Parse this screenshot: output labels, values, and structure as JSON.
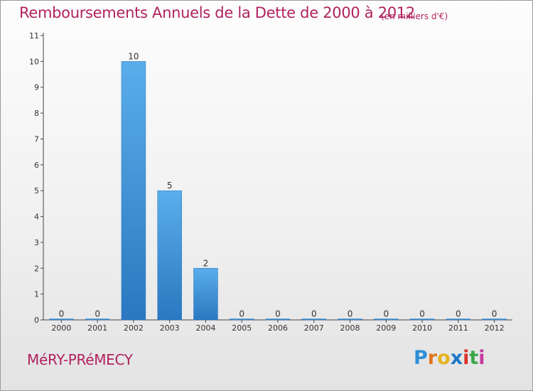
{
  "header": {
    "title": "Remboursements Annuels de la Dette de 2000 à 2012",
    "subtitle": "(en milliers d'€)"
  },
  "footer": {
    "commune": "MéRY-PRéMECY",
    "brand": "Proxiti"
  },
  "colors": {
    "bar_top": "#5aaeea",
    "bar_bottom": "#2a78c0",
    "title": "#b0225f"
  },
  "chart_data": {
    "type": "bar",
    "title": "Remboursements Annuels de la Dette de 2000 à 2012",
    "subtitle": "(en milliers d'€)",
    "xlabel": "",
    "ylabel": "",
    "categories": [
      "2000",
      "2001",
      "2002",
      "2003",
      "2004",
      "2005",
      "2006",
      "2007",
      "2008",
      "2009",
      "2010",
      "2011",
      "2012"
    ],
    "values": [
      0,
      0,
      10,
      5,
      2,
      0,
      0,
      0,
      0,
      0,
      0,
      0,
      0
    ],
    "data_labels": [
      "0",
      "0",
      "10",
      "5",
      "2",
      "0",
      "0",
      "0",
      "0",
      "0",
      "0",
      "0",
      "0"
    ],
    "yticks": [
      "0",
      "1",
      "2",
      "3",
      "4",
      "5",
      "6",
      "7",
      "8",
      "9",
      "10",
      "11"
    ],
    "ylim": [
      0,
      11
    ],
    "grid": false,
    "legend": "none"
  }
}
